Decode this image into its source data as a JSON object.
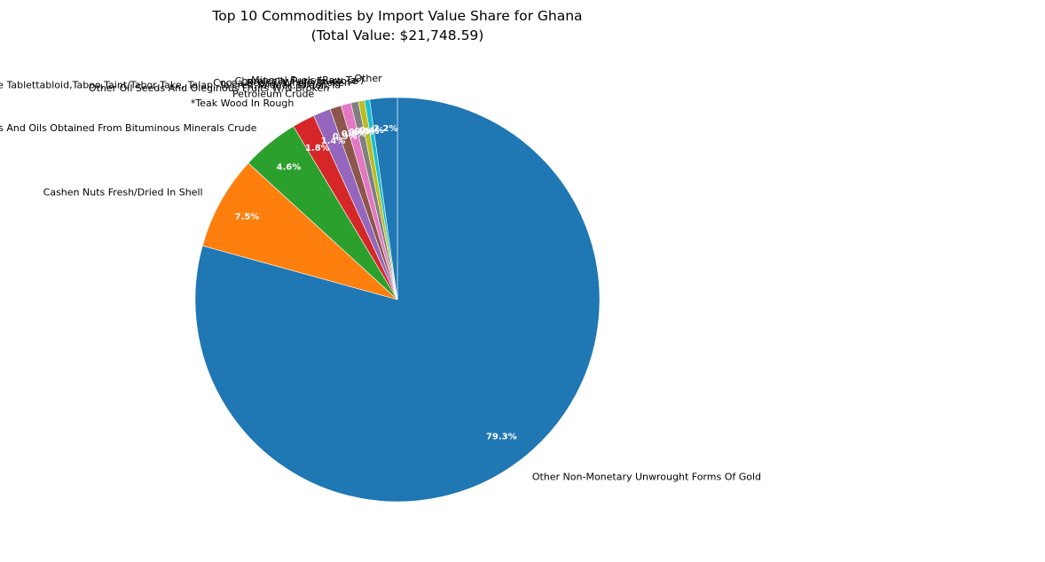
{
  "chart_data": {
    "type": "pie",
    "title": "Top 10 Commodities by Import Value Share for Ghana",
    "subtitle": "(Total Value: $21,748.59)",
    "start_angle_deg": 90,
    "direction": "clockwise",
    "slices": [
      {
        "label": "Other Non-Monetary Unwrought Forms Of Gold",
        "pct": 79.3,
        "pct_label": "79.3%",
        "color": "#1f77b4"
      },
      {
        "label": "Cashen Nuts Fresh/Dried In Shell",
        "pct": 7.5,
        "pct_label": "7.5%",
        "color": "#ff7f0e"
      },
      {
        "label": "Petroleum Oils And Oils Obtained From Bituminous Minerals Crude",
        "pct": 4.6,
        "pct_label": "4.6%",
        "color": "#2ca02c"
      },
      {
        "label": "*Teak Wood In Rough",
        "pct": 1.8,
        "pct_label": "1.8%",
        "color": "#d62728"
      },
      {
        "label": "Petroleum Crude",
        "pct": 1.4,
        "pct_label": "1.4%",
        "color": "#9467bd"
      },
      {
        "label": "Other Oil Seeds And Oleginous Fruits W/N Broken",
        "pct": 0.9,
        "pct_label": "0.9%",
        "color": "#8c564b"
      },
      {
        "label": "Products Not Covered By Itch Code Tablettabloid,Taboo,Taint/Tabor,Take, Talap, Talcred,Taldack,Taldon,Ta",
        "pct": 0.8,
        "pct_label": "0.8%",
        "color": "#e377c2"
      },
      {
        "label": "Cocoa Beans, Whole/Broken",
        "pct": 0.6,
        "pct_label": "0.6%",
        "color": "#7f7f7f"
      },
      {
        "label": "Chemically Pure Fructose",
        "pct": 0.5,
        "pct_label": "0.5%",
        "color": "#bcbd22"
      },
      {
        "label": "Mineral Fuels (Raw Tar)",
        "pct": 0.4,
        "pct_label": "0.4%",
        "color": "#17becf"
      },
      {
        "label": "Other",
        "pct": 2.2,
        "pct_label": "2.2%",
        "color": "#1f77b4"
      }
    ]
  }
}
